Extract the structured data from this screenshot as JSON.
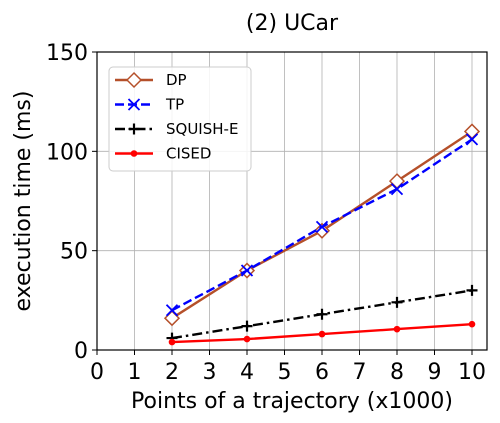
{
  "chart_data": {
    "type": "line",
    "title": "(2) UCar",
    "xlabel": "Points of a trajectory (x1000)",
    "ylabel": "execution time (ms)",
    "xlim": [
      0,
      10.4
    ],
    "ylim": [
      0,
      150
    ],
    "xticks": [
      "0",
      "1",
      "2",
      "3",
      "4",
      "5",
      "6",
      "7",
      "8",
      "9",
      "10"
    ],
    "yticks": [
      "0",
      "50",
      "100",
      "150"
    ],
    "grid": true,
    "legend_position": "top-left",
    "x": [
      2,
      4,
      6,
      8,
      10
    ],
    "series": [
      {
        "name": "DP",
        "values": [
          16,
          40,
          60,
          85,
          110
        ],
        "color": "#b5502a",
        "dash": "solid",
        "marker": "diamond"
      },
      {
        "name": "TP",
        "values": [
          20,
          40,
          62,
          81,
          106
        ],
        "color": "#0000ff",
        "dash": "dashed",
        "marker": "x"
      },
      {
        "name": "SQUISH-E",
        "values": [
          6,
          12,
          18,
          24,
          30
        ],
        "color": "#000000",
        "dash": "dashdot",
        "marker": "plus"
      },
      {
        "name": "CISED",
        "values": [
          4,
          5.5,
          8,
          10.5,
          13
        ],
        "color": "#ff0000",
        "dash": "solid",
        "marker": "dot"
      }
    ]
  }
}
